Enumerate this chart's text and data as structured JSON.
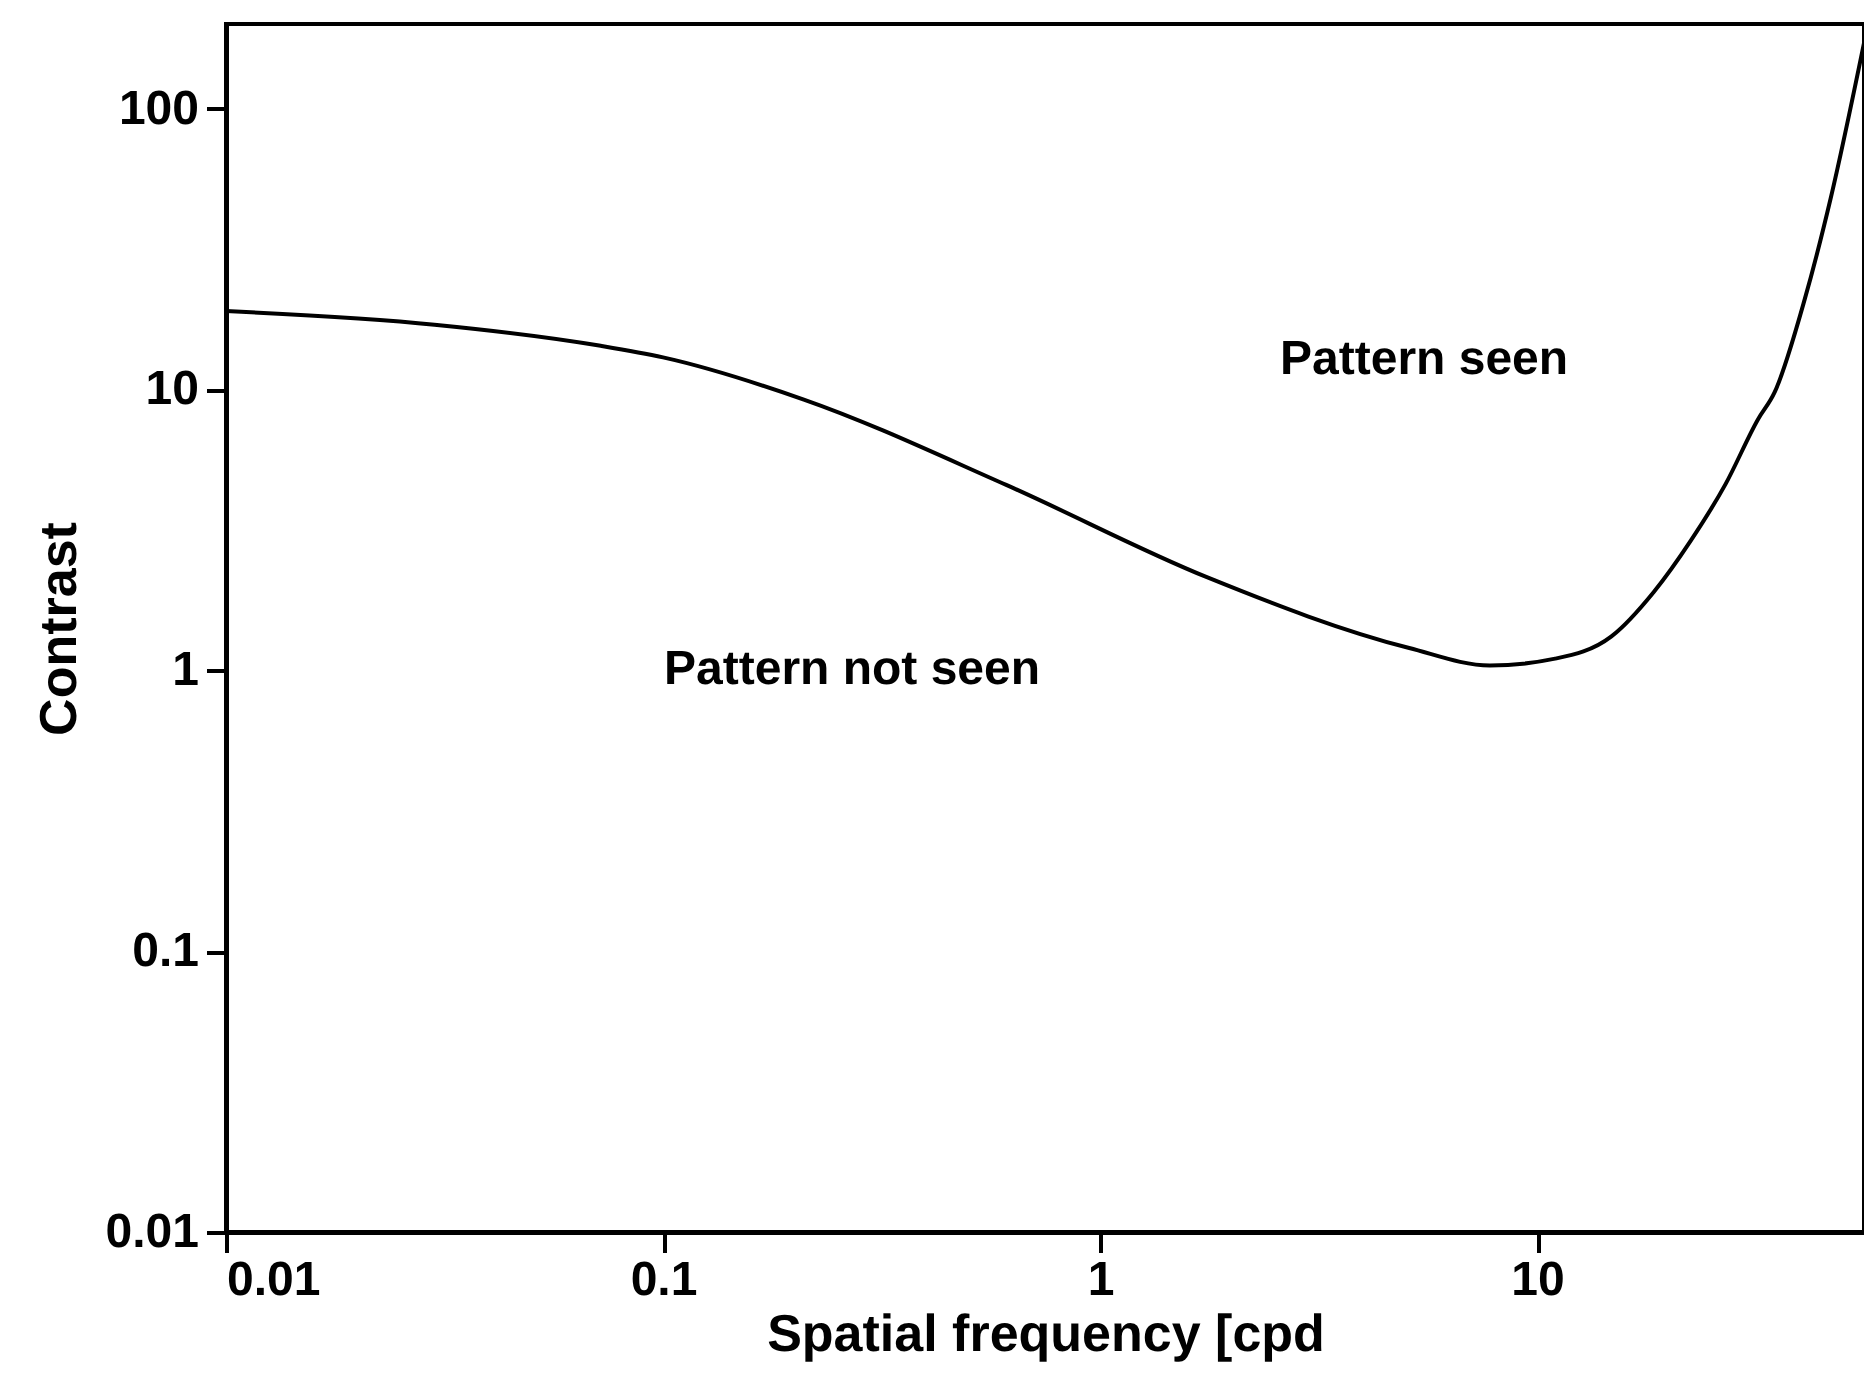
{
  "chart_data": {
    "type": "line",
    "xlabel": "Spatial frequency [cpd",
    "ylabel": "Contrast",
    "x": [
      0.01,
      0.03,
      0.072,
      0.1,
      0.21,
      0.61,
      1.75,
      5.1,
      7.8,
      11,
      14.8,
      18.5,
      22.5,
      27,
      32,
      35,
      41,
      47,
      56
    ],
    "series": [
      {
        "color": "#000000",
        "values": [
          19,
          17,
          14.3,
          13,
          9.2,
          4.57,
          2.15,
          1.2,
          1.04,
          1.1,
          1.32,
          1.9,
          2.9,
          4.6,
          7.8,
          9.8,
          21,
          48,
          171
        ]
      }
    ],
    "log": "xy",
    "xlim": [
      0.01,
      56
    ],
    "ylim": [
      0.01,
      200
    ],
    "xticks": [
      0.01,
      0.1,
      1,
      10
    ],
    "yticks": [
      0.01,
      0.1,
      1,
      10,
      100
    ],
    "grid": false,
    "marker": "none",
    "line_style": "solid",
    "annotations": [
      "Pattern seen",
      "Pattern not seen"
    ]
  }
}
